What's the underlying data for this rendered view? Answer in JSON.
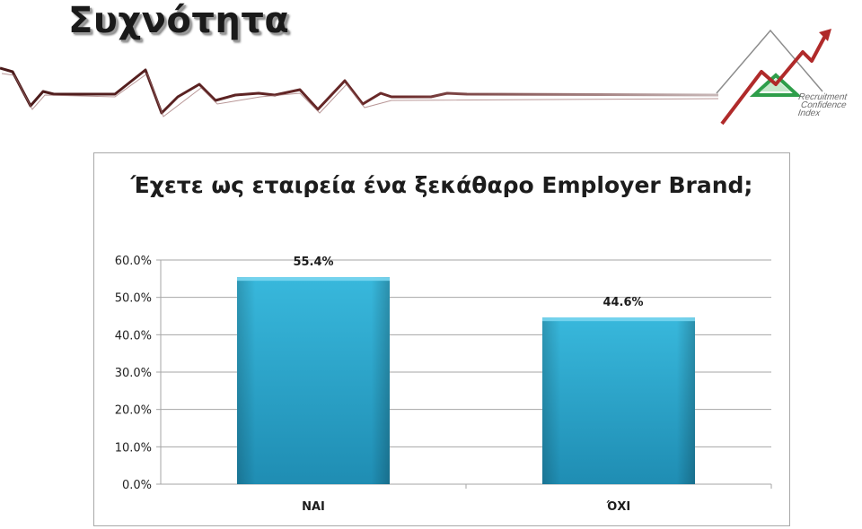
{
  "slide": {
    "title": "Συχνότητα",
    "logo": {
      "line1": "Recruitment",
      "line2": "Confidence",
      "line3": "Index"
    }
  },
  "colors": {
    "bar": "#38b8dc",
    "bar_dark": "#1f8db3",
    "grid": "#a6a6a6",
    "deco_line": "#5a1f1f",
    "logo_arrow": "#b02a2a",
    "logo_triangle": "#2e9e4a"
  },
  "chart_data": {
    "type": "bar",
    "title": "Έχετε ως εταιρεία ένα ξεκάθαρο Employer Brand;",
    "categories": [
      "ΝΑΙ",
      "ΌΧΙ"
    ],
    "values": [
      55.4,
      44.6
    ],
    "value_labels": [
      "55.4%",
      "44.6%"
    ],
    "ylim": [
      0,
      60
    ],
    "yticks": [
      0,
      10,
      20,
      30,
      40,
      50,
      60
    ],
    "ytick_labels": [
      "0.0%",
      "10.0%",
      "20.0%",
      "30.0%",
      "40.0%",
      "50.0%",
      "60.0%"
    ],
    "xlabel": "",
    "ylabel": "",
    "grid": true,
    "legend": "none"
  }
}
